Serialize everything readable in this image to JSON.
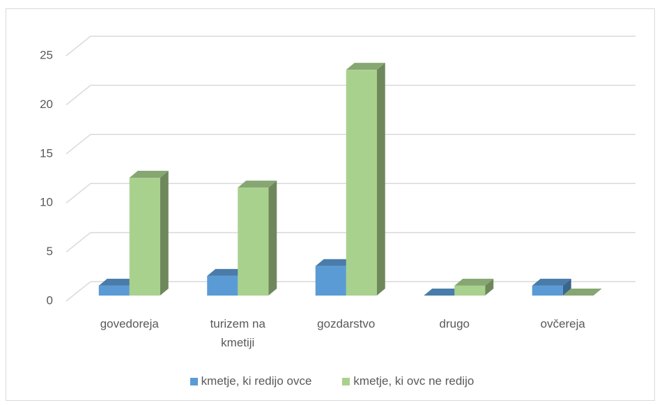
{
  "chart_data": {
    "type": "bar3d",
    "categories": [
      "govedoreja",
      "turizem na kmetiji",
      "gozdarstvo",
      "drugo",
      "ovčereja"
    ],
    "series": [
      {
        "name": "kmetje, ki redijo ovce",
        "color": "#5b9bd5",
        "values": [
          1,
          2,
          3,
          0,
          1
        ]
      },
      {
        "name": "kmetje, ki ovc ne redijo",
        "color": "#a9d18e",
        "values": [
          12,
          11,
          23,
          1,
          0
        ]
      }
    ],
    "ylim": [
      0,
      25
    ],
    "yticks": [
      0,
      5,
      10,
      15,
      20,
      25
    ],
    "grid": true,
    "legend": "bottom"
  }
}
